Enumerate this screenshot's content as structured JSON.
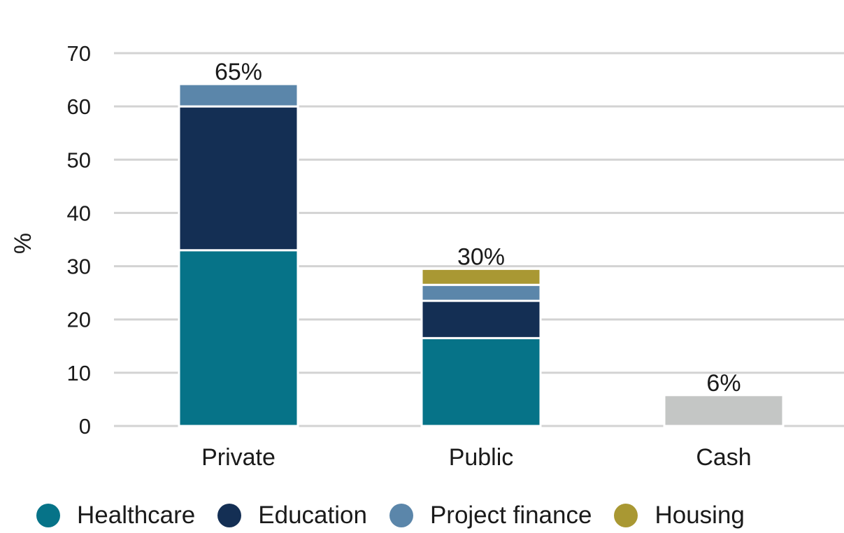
{
  "chart_data": {
    "type": "bar",
    "stacked": true,
    "categories": [
      "Private",
      "Public",
      "Cash"
    ],
    "ylabel": "%",
    "ylim": [
      0,
      70
    ],
    "yticks": [
      0,
      10,
      20,
      30,
      40,
      50,
      60,
      70
    ],
    "grid": true,
    "totals": [
      "65%",
      "30%",
      "6%"
    ],
    "series": [
      {
        "name": "Healthcare",
        "color": "#067388",
        "values": [
          33,
          16.5,
          0
        ]
      },
      {
        "name": "Education",
        "color": "#142f54",
        "values": [
          27,
          7,
          0
        ]
      },
      {
        "name": "Project finance",
        "color": "#5b86aa",
        "values": [
          4.2,
          3,
          0
        ]
      },
      {
        "name": "Housing",
        "color": "#a99833",
        "values": [
          0,
          3,
          0
        ]
      },
      {
        "name": "",
        "color": "#c4c6c5",
        "values": [
          0,
          0,
          5.8
        ],
        "in_legend": false
      }
    ],
    "legend_position": "bottom"
  }
}
